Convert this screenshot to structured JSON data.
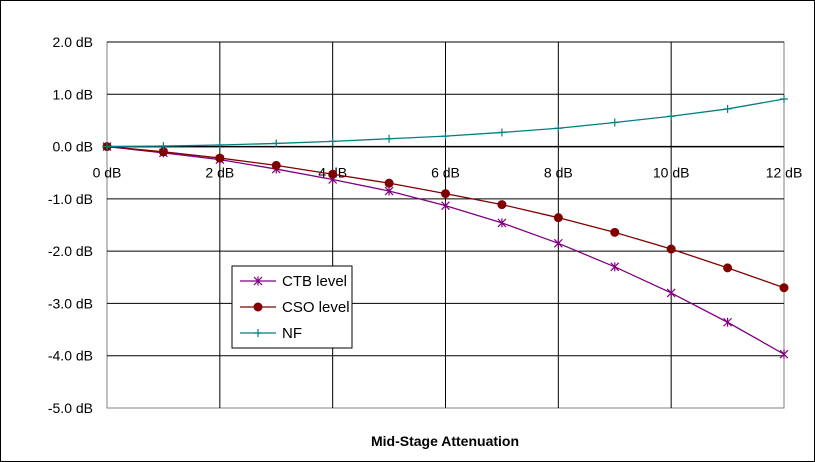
{
  "chart_data": {
    "type": "line",
    "title": "",
    "xlabel": "Mid-Stage Attenuation",
    "ylabel": "",
    "x": [
      0,
      1,
      2,
      3,
      4,
      5,
      6,
      7,
      8,
      9,
      10,
      11,
      12
    ],
    "x_ticks": [
      0,
      2,
      4,
      6,
      8,
      10,
      12
    ],
    "x_tick_labels": [
      "0 dB",
      "2 dB",
      "4 dB",
      "6 dB",
      "8 dB",
      "10 dB",
      "12 dB"
    ],
    "y_ticks": [
      2,
      1,
      0,
      -1,
      -2,
      -3,
      -4,
      -5
    ],
    "y_tick_labels": [
      "2.0 dB",
      "1.0 dB",
      "0.0 dB",
      "-1.0 dB",
      "-2.0 dB",
      "-3.0 dB",
      "-4.0 dB",
      "-5.0 dB"
    ],
    "xlim": [
      0,
      12
    ],
    "ylim": [
      -5,
      2
    ],
    "grid": true,
    "legend_position": "lower-left inside",
    "series": [
      {
        "name": "CTB level",
        "color": "#800080",
        "marker": "asterisk",
        "values": [
          0,
          -0.12,
          -0.25,
          -0.43,
          -0.63,
          -0.85,
          -1.13,
          -1.46,
          -1.85,
          -2.3,
          -2.8,
          -3.36,
          -3.97
        ]
      },
      {
        "name": "CSO level",
        "color": "#800000",
        "marker": "circle",
        "values": [
          0,
          -0.1,
          -0.22,
          -0.36,
          -0.53,
          -0.7,
          -0.9,
          -1.11,
          -1.36,
          -1.64,
          -1.96,
          -2.32,
          -2.7
        ]
      },
      {
        "name": "NF",
        "color": "#008080",
        "marker": "plus",
        "values": [
          0,
          0.01,
          0.03,
          0.06,
          0.1,
          0.15,
          0.2,
          0.27,
          0.35,
          0.46,
          0.58,
          0.72,
          0.91
        ]
      }
    ]
  }
}
